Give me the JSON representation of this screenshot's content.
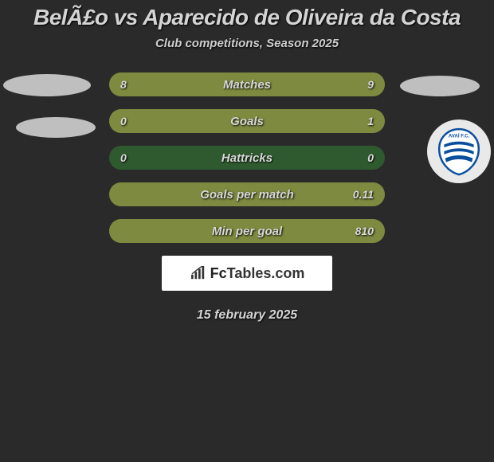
{
  "title": "BelÃ£o vs Aparecido de Oliveira da Costa",
  "subtitle": "Club competitions, Season 2025",
  "colors": {
    "background": "#2a2a2a",
    "bar_base": "#2f5a2f",
    "bar_fill": "#7d8a3f",
    "text": "#d4d4d4",
    "oval": "#bfbfbf",
    "badge_bg": "#e9e9e9",
    "logo_bg": "#ffffff",
    "crest_blue": "#0a4f9e",
    "crest_white": "#ffffff"
  },
  "bars": [
    {
      "label": "Matches",
      "left_val": "8",
      "right_val": "9",
      "left_fill_pct": 47,
      "right_fill_pct": 53
    },
    {
      "label": "Goals",
      "left_val": "0",
      "right_val": "1",
      "left_fill_pct": 0,
      "right_fill_pct": 100
    },
    {
      "label": "Hattricks",
      "left_val": "0",
      "right_val": "0",
      "left_fill_pct": 0,
      "right_fill_pct": 0
    },
    {
      "label": "Goals per match",
      "left_val": "",
      "right_val": "0.11",
      "left_fill_pct": 0,
      "right_fill_pct": 100
    },
    {
      "label": "Min per goal",
      "left_val": "",
      "right_val": "810",
      "left_fill_pct": 0,
      "right_fill_pct": 100
    }
  ],
  "logo": {
    "text_prefix": "Fc",
    "text_suffix": "Tables.com"
  },
  "date": "15 february 2025",
  "crest_label": "AVAÍ F.C."
}
